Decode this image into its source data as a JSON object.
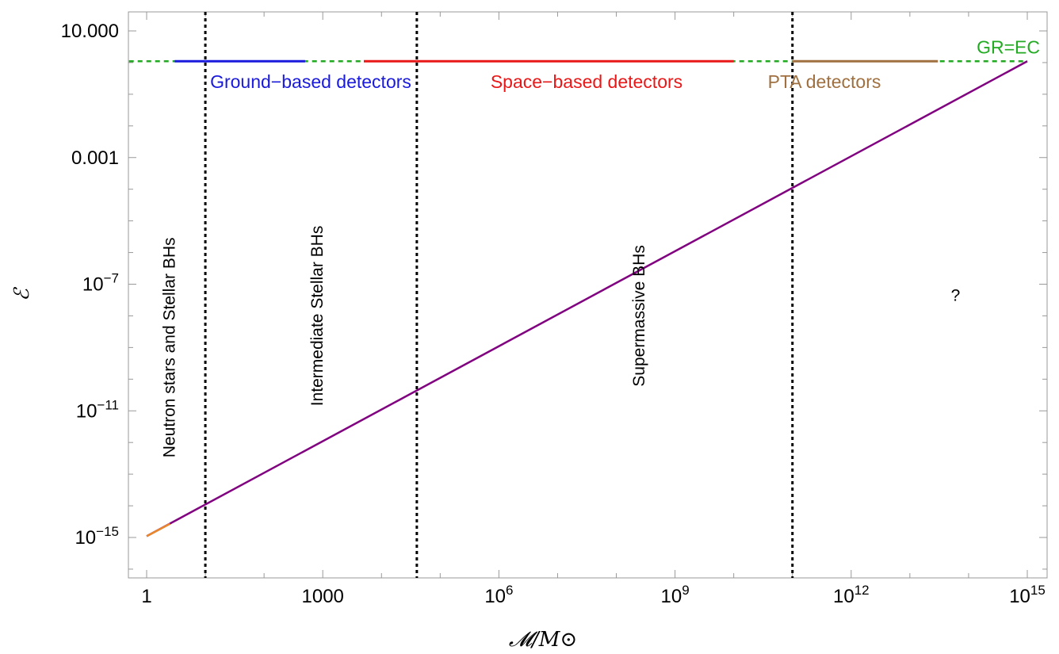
{
  "chart_data": {
    "type": "line",
    "x_scale": "log",
    "y_scale": "log",
    "xlim": [
      0.3,
      1000000000000000.0
    ],
    "ylim": [
      1e-16,
      100.0
    ],
    "grid": false,
    "xlabel": "𝓜/M⊙",
    "ylabel": "ℰ",
    "x_ticks": [
      {
        "value": 1,
        "label": "1"
      },
      {
        "value": 1000,
        "label": "1000"
      },
      {
        "value": 1000000.0,
        "base": "10",
        "exp": "6"
      },
      {
        "value": 1000000000.0,
        "base": "10",
        "exp": "9"
      },
      {
        "value": 1000000000000.0,
        "base": "10",
        "exp": "12"
      },
      {
        "value": 1000000000000000.0,
        "base": "10",
        "exp": "15"
      }
    ],
    "y_ticks": [
      {
        "value": 10,
        "label": "10.000"
      },
      {
        "value": 0.001,
        "label": "0.001"
      },
      {
        "value": 1e-07,
        "base": "10",
        "exp": "−7"
      },
      {
        "value": 1e-11,
        "base": "10",
        "exp": "−11"
      },
      {
        "value": 1e-15,
        "base": "10",
        "exp": "−15"
      }
    ],
    "series": [
      {
        "color": "#800080",
        "x": [
          1,
          1000000000000000.0
        ],
        "y": [
          1.1e-15,
          1.1
        ],
        "style": "solid"
      },
      {
        "color": "#E8882A",
        "x": [
          1,
          2.5
        ],
        "y": [
          1.1e-15,
          2.7e-15
        ],
        "style": "solid"
      }
    ],
    "gr_ec_line": {
      "label": "GR=EC",
      "y": 1.1,
      "color": "#22AA22",
      "style": "dashed",
      "x": [
        0.5,
        1000000000000000.0
      ]
    },
    "detector_bands": [
      {
        "label": "Ground−based detectors",
        "x": [
          3,
          500
        ],
        "y": 1.1,
        "color": "#1A1ADC"
      },
      {
        "label": "Space−based detectors",
        "x": [
          5000,
          10000000000.0
        ],
        "y": 1.1,
        "color": "#E81818"
      },
      {
        "label": "PTA detectors",
        "x": [
          100000000000.0,
          30000000000000.0
        ],
        "y": 1.1,
        "color": "#A07040"
      }
    ],
    "vertical_dividers": [
      {
        "x": 10,
        "style": "dotted",
        "color": "#000000"
      },
      {
        "x": 40000,
        "style": "dotted",
        "color": "#000000"
      },
      {
        "x": 100000000000.0,
        "style": "dotted",
        "color": "#000000"
      }
    ],
    "region_labels": [
      {
        "text": "Neutron stars and Stellar BHs",
        "x": 3,
        "y": 1e-09,
        "rotation": -90
      },
      {
        "text": "Intermediate Stellar BHs",
        "x": 1000,
        "y": 1e-08,
        "rotation": -90
      },
      {
        "text": "Supermassive BHs",
        "x": 300000000.0,
        "y": 1e-08,
        "rotation": -90
      },
      {
        "text": "?",
        "x": 60000000000000.0,
        "y": 3e-08,
        "rotation": 0
      }
    ]
  }
}
